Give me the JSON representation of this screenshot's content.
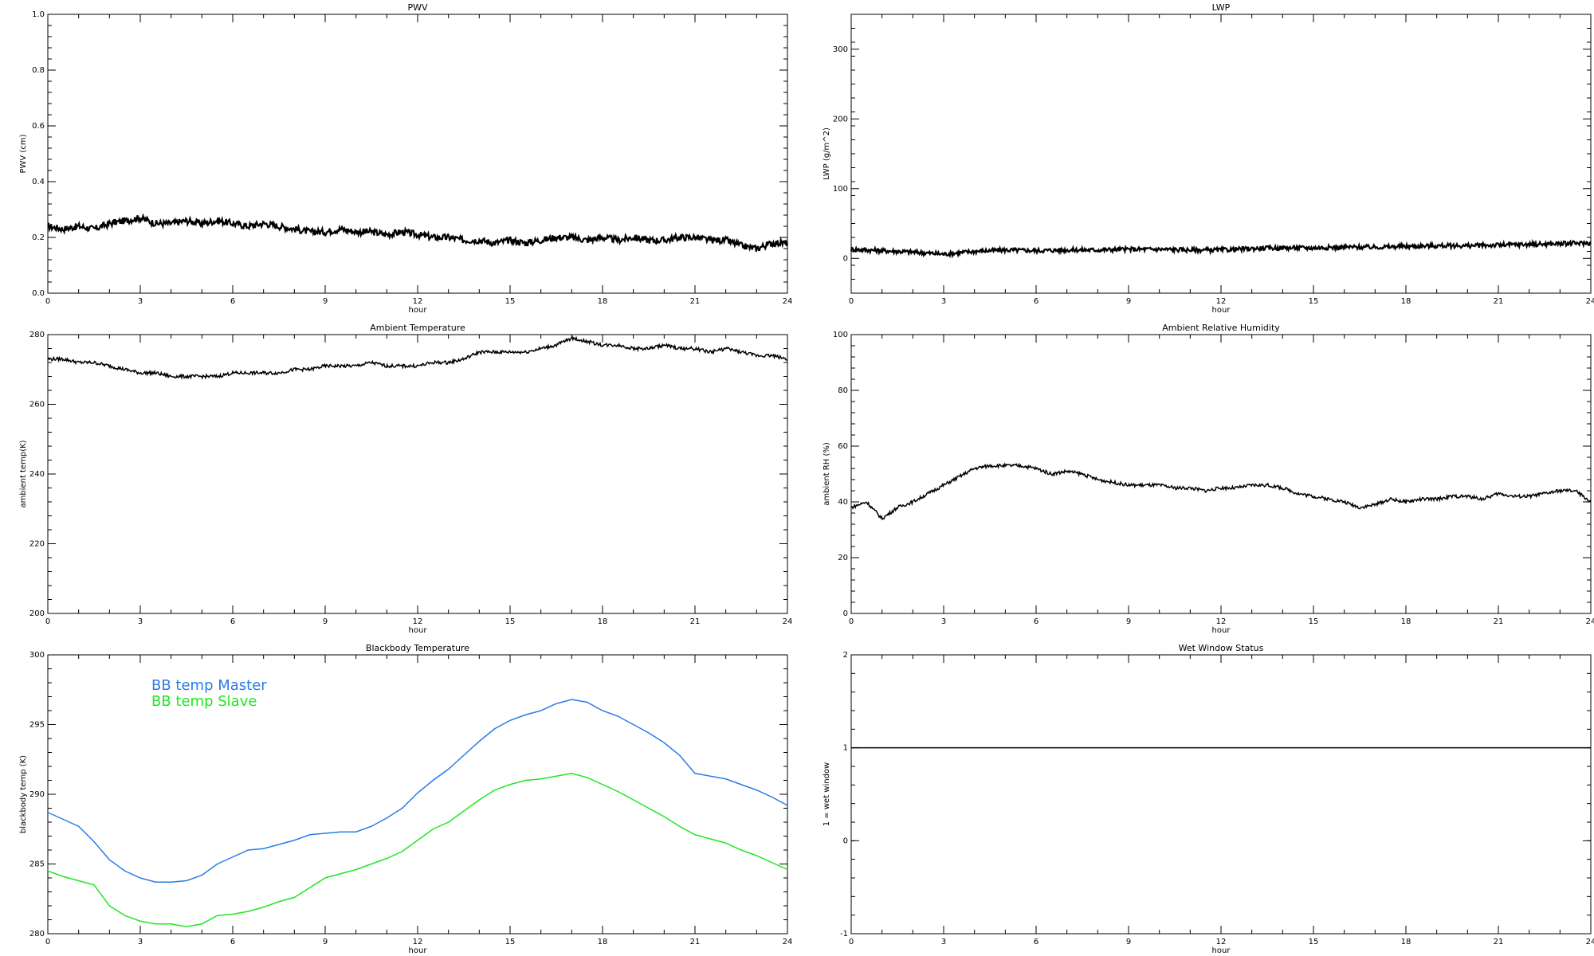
{
  "colors": {
    "axis": "#000000",
    "series": "#000000",
    "bb_master": "#2a7be8",
    "bb_slave": "#22e622"
  },
  "chart_data": [
    {
      "id": "pwv",
      "type": "line",
      "title": "PWV",
      "xlabel": "hour",
      "ylabel": "PWV (cm)",
      "xlim": [
        0,
        24
      ],
      "ylim": [
        0,
        1
      ],
      "xticks": [
        "0",
        "3",
        "6",
        "9",
        "12",
        "15",
        "18",
        "21",
        "24"
      ],
      "yticks": [
        "0.0",
        "0.2",
        "0.4",
        "0.6",
        "0.8",
        "1.0"
      ],
      "series": [
        {
          "x": [
            0,
            0.5,
            1,
            1.5,
            2,
            2.5,
            3,
            3.5,
            4,
            4.5,
            5,
            5.5,
            6,
            6.5,
            7,
            7.5,
            8,
            8.5,
            9,
            9.5,
            10,
            10.5,
            11,
            11.5,
            12,
            12.5,
            13,
            13.5,
            14,
            14.5,
            15,
            15.5,
            16,
            16.5,
            17,
            17.5,
            18,
            18.5,
            19,
            19.5,
            20,
            20.5,
            21,
            21.5,
            22,
            22.5,
            23,
            23.5,
            24
          ],
          "y": [
            0.24,
            0.23,
            0.24,
            0.23,
            0.25,
            0.26,
            0.27,
            0.25,
            0.25,
            0.26,
            0.25,
            0.26,
            0.25,
            0.24,
            0.25,
            0.24,
            0.23,
            0.22,
            0.22,
            0.23,
            0.22,
            0.22,
            0.21,
            0.22,
            0.21,
            0.2,
            0.2,
            0.19,
            0.19,
            0.18,
            0.19,
            0.18,
            0.19,
            0.2,
            0.2,
            0.19,
            0.2,
            0.19,
            0.2,
            0.19,
            0.19,
            0.2,
            0.2,
            0.19,
            0.19,
            0.17,
            0.16,
            0.18,
            0.18
          ]
        }
      ]
    },
    {
      "id": "lwp",
      "type": "line",
      "title": "LWP",
      "xlabel": "hour",
      "ylabel": "LWP (g/m^2)",
      "xlim": [
        0,
        24
      ],
      "ylim": [
        -50,
        350
      ],
      "xticks": [
        "0",
        "3",
        "6",
        "9",
        "12",
        "15",
        "18",
        "21",
        "24"
      ],
      "yticks": [
        "0",
        "100",
        "200",
        "300"
      ],
      "ytick_values": [
        0,
        100,
        200,
        300
      ],
      "series": [
        {
          "x": [
            0,
            1,
            2,
            3,
            4,
            5,
            6,
            7,
            8,
            9,
            10,
            11,
            12,
            13,
            14,
            15,
            16,
            17,
            18,
            19,
            20,
            21,
            22,
            23,
            24
          ],
          "y": [
            13,
            11,
            9,
            6,
            10,
            12,
            11,
            12,
            12,
            13,
            13,
            12,
            12,
            14,
            15,
            15,
            16,
            16,
            17,
            18,
            18,
            19,
            20,
            21,
            22
          ]
        }
      ]
    },
    {
      "id": "ambient_temp",
      "type": "line",
      "title": "Ambient Temperature",
      "xlabel": "hour",
      "ylabel": "ambient temp(K)",
      "xlim": [
        0,
        24
      ],
      "ylim": [
        200,
        280
      ],
      "xticks": [
        "0",
        "3",
        "6",
        "9",
        "12",
        "15",
        "18",
        "21",
        "24"
      ],
      "yticks": [
        "200",
        "220",
        "240",
        "260",
        "280"
      ],
      "ytick_values": [
        200,
        220,
        240,
        260,
        280
      ],
      "series": [
        {
          "x": [
            0,
            0.5,
            1,
            1.5,
            2,
            2.5,
            3,
            3.5,
            4,
            4.5,
            5,
            5.5,
            6,
            6.5,
            7,
            7.5,
            8,
            8.5,
            9,
            9.5,
            10,
            10.5,
            11,
            11.5,
            12,
            12.5,
            13,
            13.5,
            14,
            14.5,
            15,
            15.5,
            16,
            16.5,
            17,
            17.5,
            18,
            18.5,
            19,
            19.5,
            20,
            20.5,
            21,
            21.5,
            22,
            22.5,
            23,
            23.5,
            24
          ],
          "y": [
            273,
            273,
            272,
            272,
            271,
            270,
            269,
            269,
            268,
            268,
            268,
            268,
            269,
            269,
            269,
            269,
            270,
            270,
            271,
            271,
            271,
            272,
            271,
            271,
            271,
            272,
            272,
            273,
            275,
            275,
            275,
            275,
            276,
            277,
            279,
            278,
            277,
            277,
            276,
            276,
            277,
            276,
            276,
            275,
            276,
            275,
            274,
            274,
            273
          ]
        }
      ]
    },
    {
      "id": "ambient_rh",
      "type": "line",
      "title": "Ambient Relative Humidity",
      "xlabel": "hour",
      "ylabel": "ambient RH (%)",
      "xlim": [
        0,
        24
      ],
      "ylim": [
        0,
        100
      ],
      "xticks": [
        "0",
        "3",
        "6",
        "9",
        "12",
        "15",
        "18",
        "21",
        "24"
      ],
      "yticks": [
        "0",
        "20",
        "40",
        "60",
        "80",
        "100"
      ],
      "ytick_values": [
        0,
        20,
        40,
        60,
        80,
        100
      ],
      "series": [
        {
          "x": [
            0,
            0.5,
            1,
            1.5,
            2,
            2.5,
            3,
            3.5,
            4,
            4.5,
            5,
            5.5,
            6,
            6.5,
            7,
            7.5,
            8,
            8.5,
            9,
            9.5,
            10,
            10.5,
            11,
            11.5,
            12,
            12.5,
            13,
            13.5,
            14,
            14.5,
            15,
            15.5,
            16,
            16.5,
            17,
            17.5,
            18,
            18.5,
            19,
            19.5,
            20,
            20.5,
            21,
            21.5,
            22,
            22.5,
            23,
            23.5,
            24
          ],
          "y": [
            38,
            40,
            34,
            38,
            40,
            43,
            46,
            49,
            52,
            53,
            53,
            53,
            52,
            50,
            51,
            50,
            48,
            47,
            46,
            46,
            46,
            45,
            45,
            44,
            45,
            45,
            46,
            46,
            45,
            43,
            42,
            41,
            40,
            38,
            39,
            41,
            40,
            41,
            41,
            42,
            42,
            41,
            43,
            42,
            42,
            43,
            44,
            44,
            40
          ]
        }
      ]
    },
    {
      "id": "blackbody_temp",
      "type": "line",
      "title": "Blackbody Temperature",
      "xlabel": "hour",
      "ylabel": "blackbody temp (K)",
      "xlim": [
        0,
        24
      ],
      "ylim": [
        280,
        300
      ],
      "xticks": [
        "0",
        "3",
        "6",
        "9",
        "12",
        "15",
        "18",
        "21",
        "24"
      ],
      "yticks": [
        "280",
        "285",
        "290",
        "295",
        "300"
      ],
      "ytick_values": [
        280,
        285,
        290,
        295,
        300
      ],
      "legend": [
        "BB temp Master",
        "BB temp Slave"
      ],
      "series": [
        {
          "name": "BB temp Master",
          "color_key": "bb_master",
          "x": [
            0,
            0.5,
            1,
            1.5,
            2,
            2.5,
            3,
            3.5,
            4,
            4.5,
            5,
            5.5,
            6,
            6.5,
            7,
            7.5,
            8,
            8.5,
            9,
            9.5,
            10,
            10.5,
            11,
            11.5,
            12,
            12.5,
            13,
            13.5,
            14,
            14.5,
            15,
            15.5,
            16,
            16.5,
            17,
            17.5,
            18,
            18.5,
            19,
            19.5,
            20,
            20.5,
            21,
            21.5,
            22,
            22.5,
            23,
            23.5,
            24
          ],
          "y": [
            288.7,
            288.2,
            287.7,
            286.6,
            285.3,
            284.5,
            284.0,
            283.7,
            283.7,
            283.8,
            284.2,
            285.0,
            285.5,
            286.0,
            286.1,
            286.4,
            286.7,
            287.1,
            287.2,
            287.3,
            287.3,
            287.7,
            288.3,
            289.0,
            290.1,
            291.0,
            291.8,
            292.8,
            293.8,
            294.7,
            295.3,
            295.7,
            296.0,
            296.5,
            296.8,
            296.6,
            296.0,
            295.6,
            295.0,
            294.4,
            293.7,
            292.8,
            291.5,
            291.3,
            291.1,
            290.7,
            290.3,
            289.8,
            289.2
          ]
        },
        {
          "name": "BB temp Slave",
          "color_key": "bb_slave",
          "x": [
            0,
            0.5,
            1,
            1.5,
            2,
            2.5,
            3,
            3.5,
            4,
            4.5,
            5,
            5.5,
            6,
            6.5,
            7,
            7.5,
            8,
            8.5,
            9,
            9.5,
            10,
            10.5,
            11,
            11.5,
            12,
            12.5,
            13,
            13.5,
            14,
            14.5,
            15,
            15.5,
            16,
            16.5,
            17,
            17.5,
            18,
            18.5,
            19,
            19.5,
            20,
            20.5,
            21,
            21.5,
            22,
            22.5,
            23,
            23.5,
            24
          ],
          "y": [
            284.5,
            284.1,
            283.8,
            283.5,
            282.0,
            281.3,
            280.9,
            280.7,
            280.7,
            280.5,
            280.7,
            281.3,
            281.4,
            281.6,
            281.9,
            282.3,
            282.6,
            283.3,
            284.0,
            284.3,
            284.6,
            285.0,
            285.4,
            285.9,
            286.7,
            287.5,
            288.0,
            288.8,
            289.6,
            290.3,
            290.7,
            291.0,
            291.1,
            291.3,
            291.5,
            291.2,
            290.7,
            290.2,
            289.6,
            289.0,
            288.4,
            287.7,
            287.1,
            286.8,
            286.5,
            286.0,
            285.6,
            285.1,
            284.6
          ]
        }
      ]
    },
    {
      "id": "wet_window",
      "type": "line",
      "title": "Wet Window Status",
      "xlabel": "hour",
      "ylabel": "1 = wet window",
      "xlim": [
        0,
        24
      ],
      "ylim": [
        -1,
        2
      ],
      "xticks": [
        "0",
        "3",
        "6",
        "9",
        "12",
        "15",
        "18",
        "21",
        "24"
      ],
      "yticks": [
        "-1",
        "0",
        "1",
        "2"
      ],
      "ytick_values": [
        -1,
        0,
        1,
        2
      ],
      "series": [
        {
          "x": [
            0,
            24
          ],
          "y": [
            1,
            1
          ]
        }
      ]
    }
  ]
}
